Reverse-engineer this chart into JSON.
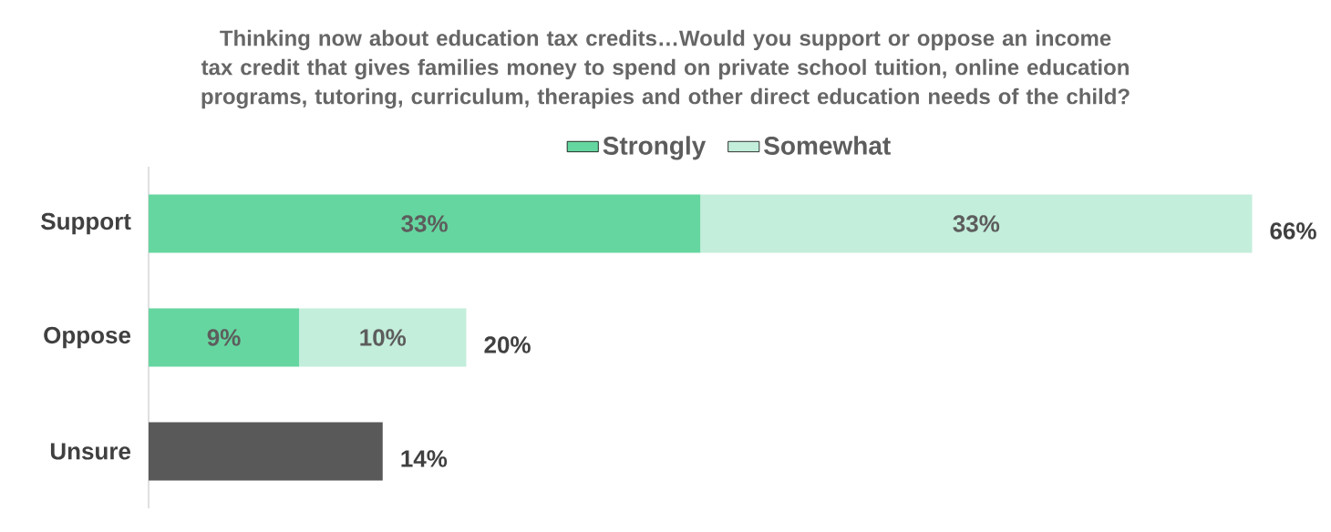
{
  "chart_data": {
    "type": "bar",
    "orientation": "horizontal",
    "stacked": true,
    "title": "Thinking now about education tax credits…Would you support or oppose an income tax credit that gives families money to spend on private school tuition, online education programs, tutoring, curriculum, therapies and other direct education needs of the child?",
    "categories": [
      "Support",
      "Oppose",
      "Unsure"
    ],
    "series": [
      {
        "name": "Strongly",
        "color": "#66d6a0",
        "values": [
          33,
          9,
          null
        ],
        "value_labels": [
          "33%",
          "9%",
          null
        ]
      },
      {
        "name": "Somewhat",
        "color": "#c3eedb",
        "values": [
          33,
          10,
          null
        ],
        "value_labels": [
          "33%",
          "10%",
          null
        ]
      },
      {
        "color": "#595959",
        "values": [
          null,
          null,
          14
        ],
        "value_labels": [
          null,
          null,
          "14%"
        ]
      }
    ],
    "totals": [
      "66%",
      "20%",
      null
    ],
    "legend": "top"
  }
}
